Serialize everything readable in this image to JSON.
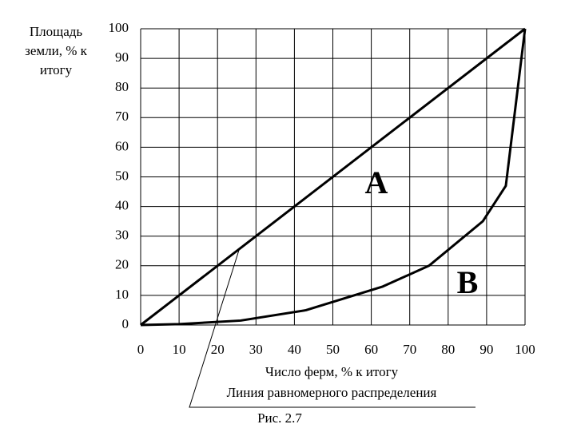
{
  "chart_data": {
    "type": "line",
    "y_label": [
      "Площадь",
      "земли, % к",
      "итогу"
    ],
    "x_label": "Число ферм, % к итогу",
    "caption": "Рис. 2.7",
    "annotations": [
      "A",
      "B"
    ],
    "series": [
      {
        "name": "Линия равномерного распределения",
        "color": "#000000",
        "x": [
          0,
          100
        ],
        "values": [
          0,
          100
        ]
      },
      {
        "color": "#000000",
        "x": [
          0,
          10,
          26,
          43,
          63,
          75,
          89,
          95,
          100
        ],
        "values": [
          0,
          0.3,
          1.5,
          5,
          13,
          20,
          35,
          47,
          100
        ]
      }
    ],
    "xlim": [
      0,
      100
    ],
    "ylim": [
      0,
      100
    ],
    "xticks": [
      0,
      10,
      20,
      30,
      40,
      50,
      60,
      70,
      80,
      90,
      100
    ],
    "yticks": [
      0,
      10,
      20,
      30,
      40,
      50,
      60,
      70,
      80,
      90,
      100
    ],
    "grid": true
  }
}
